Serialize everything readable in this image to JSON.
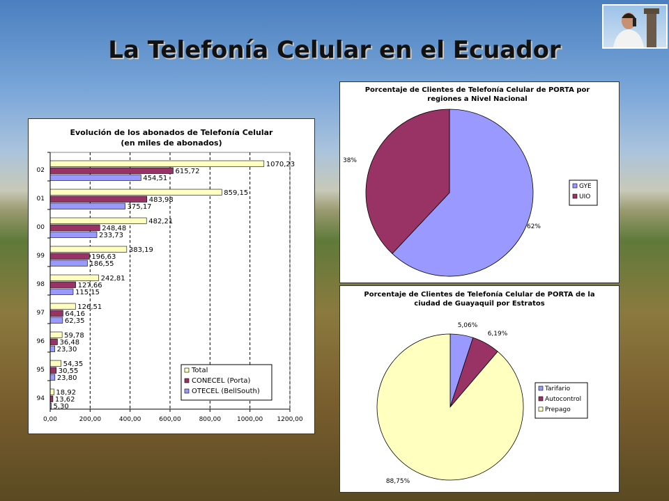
{
  "title": "La Telefonía Celular en el Ecuador",
  "colors": {
    "total": "#ffffc0",
    "conecel": "#993366",
    "otecel": "#9999ff",
    "gye": "#9999ff",
    "uio": "#993366",
    "tarifario": "#9999ff",
    "autocontrol": "#993366",
    "prepago": "#ffffc0"
  },
  "chart_data": [
    {
      "type": "bar",
      "orientation": "horizontal",
      "title": "Evolución de los abonados de Telefonía Celular",
      "subtitle": "(en miles de abonados)",
      "categories": [
        "02",
        "01",
        "00",
        "99",
        "98",
        "97",
        "96",
        "95",
        "94"
      ],
      "series": [
        {
          "name": "Total",
          "values": [
            1070.23,
            859.15,
            482.21,
            383.19,
            242.81,
            126.51,
            59.78,
            54.35,
            18.92
          ],
          "labels": [
            "1070,23",
            "859,15",
            "482,21",
            "383,19",
            "242,81",
            "126,51",
            "59,78",
            "54,35",
            "18,92"
          ]
        },
        {
          "name": "CONECEL (Porta)",
          "values": [
            615.72,
            483.98,
            248.48,
            196.63,
            127.66,
            64.16,
            36.48,
            30.55,
            13.62
          ],
          "labels": [
            "615,72",
            "483,98",
            "248,48",
            "196,63",
            "127,66",
            "64,16",
            "36,48",
            "30,55",
            "13,62"
          ]
        },
        {
          "name": "OTECEL (BellSouth)",
          "values": [
            454.51,
            375.17,
            233.73,
            186.55,
            115.15,
            62.35,
            23.3,
            23.8,
            5.3
          ],
          "labels": [
            "454,51",
            "375,17",
            "233,73",
            "186,55",
            "115,15",
            "62,35",
            "23,30",
            "23,80",
            "5,30"
          ]
        }
      ],
      "xlim": [
        0,
        1200
      ],
      "xticks": [
        "0,00",
        "200,00",
        "400,00",
        "600,00",
        "800,00",
        "1000,00",
        "1200,00"
      ],
      "legend": "bottom-right"
    },
    {
      "type": "pie",
      "title": "Porcentaje de Clientes de Telefonía Celular de PORTA por",
      "title2": "regiones a Nivel Nacional",
      "slices": [
        {
          "name": "GYE",
          "value": 62,
          "label": "62%"
        },
        {
          "name": "UIO",
          "value": 38,
          "label": "38%"
        }
      ],
      "legend": "right"
    },
    {
      "type": "pie",
      "title": "Porcentaje de Clientes de Telefonía Celular de PORTA de la",
      "title2": "ciudad de Guayaquil por Estratos",
      "slices": [
        {
          "name": "Tarifario",
          "value": 5.06,
          "label": "5,06%"
        },
        {
          "name": "Autocontrol",
          "value": 6.19,
          "label": "6,19%"
        },
        {
          "name": "Prepago",
          "value": 88.75,
          "label": "88,75%"
        }
      ],
      "legend": "right"
    }
  ]
}
